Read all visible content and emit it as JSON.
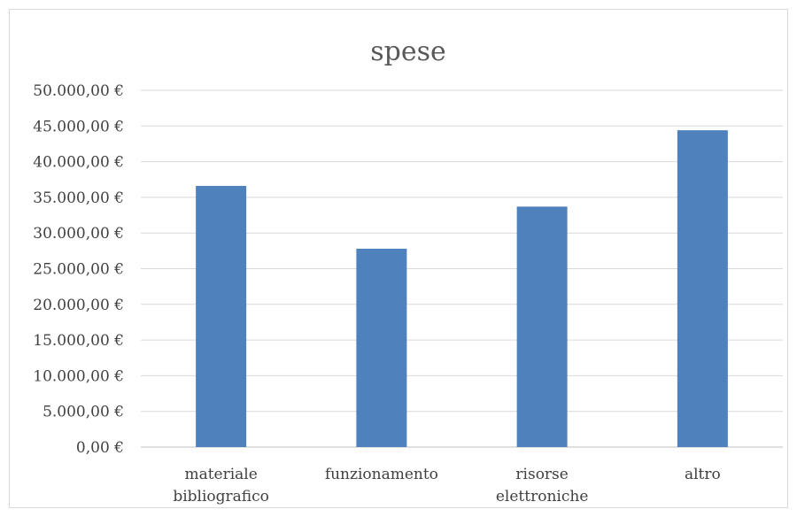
{
  "chart_data": {
    "type": "bar",
    "title": "spese",
    "categories": [
      [
        "materiale",
        "bibliografico"
      ],
      [
        "funzionamento"
      ],
      [
        "risorse",
        "elettroniche"
      ],
      [
        "altro"
      ]
    ],
    "values": [
      36600,
      27800,
      33700,
      44400
    ],
    "ylim": [
      0,
      50000
    ],
    "ytick_step": 5000,
    "ytick_labels": [
      "0,00 €",
      "5.000,00 €",
      "10.000,00 €",
      "15.000,00 €",
      "20.000,00 €",
      "25.000,00 €",
      "30.000,00 €",
      "35.000,00 €",
      "40.000,00 €",
      "45.000,00 €",
      "50.000,00 €"
    ],
    "xlabel": "",
    "ylabel": "",
    "grid": true,
    "bar_color": "#4f81bd"
  }
}
